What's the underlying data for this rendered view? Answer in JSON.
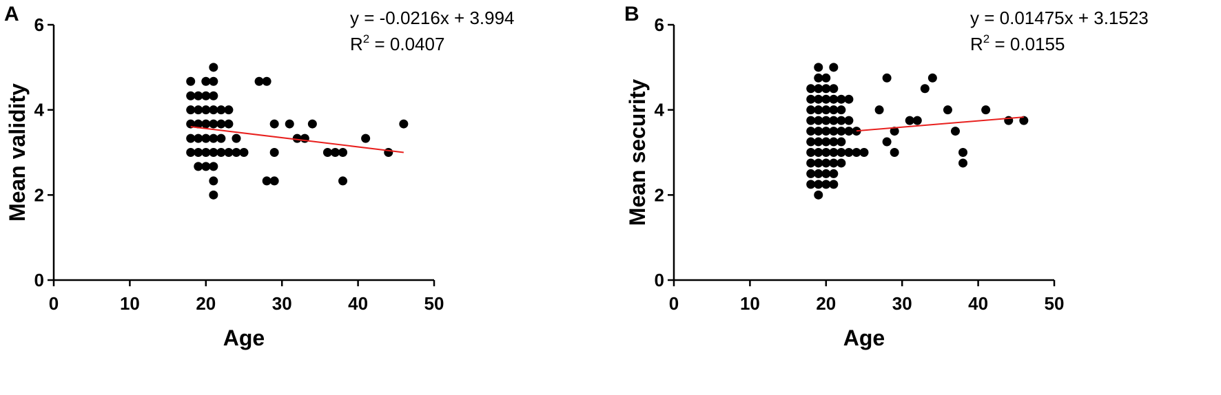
{
  "chart_data": [
    {
      "type": "scatter",
      "panel_label": "A",
      "xlabel": "Age",
      "ylabel": "Mean validity",
      "xlim": [
        0,
        50
      ],
      "ylim": [
        0,
        6
      ],
      "xticks": [
        "0",
        "10",
        "20",
        "30",
        "40",
        "50"
      ],
      "yticks": [
        "0",
        "2",
        "4",
        "6"
      ],
      "grid": false,
      "equation": "y = -0.0216x + 3.994",
      "r2_prefix": "R",
      "r2_sup": "2",
      "r2_value": " = 0.0407",
      "point_color": "#000000",
      "line_color": "#e8201e",
      "fit": {
        "slope": -0.0216,
        "intercept": 3.994,
        "x_range": [
          18,
          46
        ]
      },
      "points": [
        [
          18,
          4.67
        ],
        [
          18,
          4.33
        ],
        [
          18,
          4.0
        ],
        [
          18,
          3.67
        ],
        [
          18,
          3.33
        ],
        [
          18,
          3.0
        ],
        [
          19,
          4.33
        ],
        [
          19,
          4.0
        ],
        [
          19,
          3.67
        ],
        [
          19,
          3.33
        ],
        [
          19,
          3.0
        ],
        [
          19,
          2.67
        ],
        [
          20,
          4.67
        ],
        [
          20,
          4.33
        ],
        [
          20,
          4.0
        ],
        [
          20,
          3.67
        ],
        [
          20,
          3.33
        ],
        [
          20,
          3.0
        ],
        [
          20,
          2.67
        ],
        [
          21,
          5.0
        ],
        [
          21,
          4.67
        ],
        [
          21,
          4.33
        ],
        [
          21,
          4.0
        ],
        [
          21,
          3.67
        ],
        [
          21,
          3.33
        ],
        [
          21,
          3.0
        ],
        [
          21,
          2.67
        ],
        [
          21,
          2.33
        ],
        [
          21,
          2.0
        ],
        [
          22,
          4.0
        ],
        [
          22,
          3.67
        ],
        [
          22,
          3.33
        ],
        [
          22,
          3.0
        ],
        [
          23,
          4.0
        ],
        [
          23,
          3.67
        ],
        [
          23,
          3.0
        ],
        [
          24,
          3.33
        ],
        [
          24,
          3.0
        ],
        [
          25,
          3.0
        ],
        [
          27,
          4.67
        ],
        [
          28,
          4.67
        ],
        [
          28,
          2.33
        ],
        [
          29,
          3.67
        ],
        [
          29,
          3.0
        ],
        [
          29,
          2.33
        ],
        [
          31,
          3.67
        ],
        [
          32,
          3.33
        ],
        [
          33,
          3.33
        ],
        [
          34,
          3.67
        ],
        [
          36,
          3.0
        ],
        [
          37,
          3.0
        ],
        [
          38,
          3.0
        ],
        [
          38,
          2.33
        ],
        [
          41,
          3.33
        ],
        [
          44,
          3.0
        ],
        [
          46,
          3.67
        ]
      ]
    },
    {
      "type": "scatter",
      "panel_label": "B",
      "xlabel": "Age",
      "ylabel": "Mean security",
      "xlim": [
        0,
        50
      ],
      "ylim": [
        0,
        6
      ],
      "xticks": [
        "0",
        "10",
        "20",
        "30",
        "40",
        "50"
      ],
      "yticks": [
        "0",
        "2",
        "4",
        "6"
      ],
      "grid": false,
      "equation": "y = 0.01475x + 3.1523",
      "r2_prefix": "R",
      "r2_sup": "2",
      "r2_value": " = 0.0155",
      "point_color": "#000000",
      "line_color": "#e8201e",
      "fit": {
        "slope": 0.01475,
        "intercept": 3.1523,
        "x_range": [
          24,
          46
        ]
      },
      "points": [
        [
          19,
          5.0
        ],
        [
          19,
          4.75
        ],
        [
          19,
          4.5
        ],
        [
          19,
          4.25
        ],
        [
          19,
          4.0
        ],
        [
          19,
          3.75
        ],
        [
          19,
          3.5
        ],
        [
          19,
          3.25
        ],
        [
          19,
          3.0
        ],
        [
          19,
          2.75
        ],
        [
          19,
          2.5
        ],
        [
          19,
          2.25
        ],
        [
          19,
          2.0
        ],
        [
          18,
          4.5
        ],
        [
          18,
          4.25
        ],
        [
          18,
          4.0
        ],
        [
          18,
          3.75
        ],
        [
          18,
          3.5
        ],
        [
          18,
          3.25
        ],
        [
          18,
          3.0
        ],
        [
          18,
          2.75
        ],
        [
          18,
          2.5
        ],
        [
          18,
          2.25
        ],
        [
          20,
          4.75
        ],
        [
          20,
          4.5
        ],
        [
          20,
          4.25
        ],
        [
          20,
          4.0
        ],
        [
          20,
          3.75
        ],
        [
          20,
          3.5
        ],
        [
          20,
          3.25
        ],
        [
          20,
          3.0
        ],
        [
          20,
          2.75
        ],
        [
          20,
          2.5
        ],
        [
          20,
          2.25
        ],
        [
          21,
          5.0
        ],
        [
          21,
          4.5
        ],
        [
          21,
          4.25
        ],
        [
          21,
          4.0
        ],
        [
          21,
          3.75
        ],
        [
          21,
          3.5
        ],
        [
          21,
          3.25
        ],
        [
          21,
          3.0
        ],
        [
          21,
          2.75
        ],
        [
          21,
          2.5
        ],
        [
          21,
          2.25
        ],
        [
          22,
          4.25
        ],
        [
          22,
          4.0
        ],
        [
          22,
          3.75
        ],
        [
          22,
          3.5
        ],
        [
          22,
          3.25
        ],
        [
          22,
          3.0
        ],
        [
          22,
          2.75
        ],
        [
          23,
          4.25
        ],
        [
          23,
          3.75
        ],
        [
          23,
          3.5
        ],
        [
          23,
          3.0
        ],
        [
          24,
          3.5
        ],
        [
          24,
          3.0
        ],
        [
          25,
          3.0
        ],
        [
          27,
          4.0
        ],
        [
          28,
          4.75
        ],
        [
          28,
          3.25
        ],
        [
          29,
          3.5
        ],
        [
          29,
          3.0
        ],
        [
          31,
          3.75
        ],
        [
          32,
          3.75
        ],
        [
          33,
          4.5
        ],
        [
          34,
          4.75
        ],
        [
          36,
          4.0
        ],
        [
          37,
          3.5
        ],
        [
          38,
          3.0
        ],
        [
          38,
          2.75
        ],
        [
          41,
          4.0
        ],
        [
          44,
          3.75
        ],
        [
          46,
          3.75
        ]
      ]
    }
  ]
}
